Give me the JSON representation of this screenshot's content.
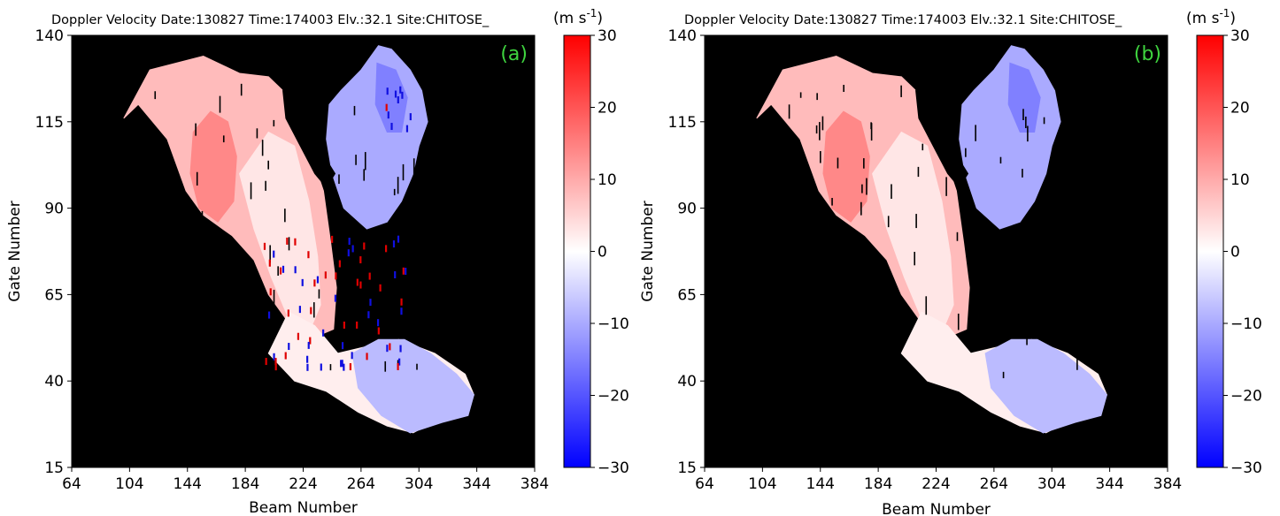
{
  "chart_data": [
    {
      "type": "heatmap",
      "title": "Doppler Velocity  Date:130827 Time:174003 Elv.:32.1 Site:CHITOSE_",
      "panel_label": "(a)",
      "xlabel": "Beam Number",
      "ylabel": "Gate Number",
      "xlim": [
        64,
        384
      ],
      "ylim": [
        15,
        140
      ],
      "xticks": [
        64,
        104,
        144,
        184,
        224,
        264,
        304,
        344,
        384
      ],
      "yticks": [
        15,
        40,
        65,
        90,
        115,
        140
      ],
      "background": "#000000",
      "colorbar": {
        "label_main": "(m s",
        "label_sup": "-1",
        "label_end": ")",
        "range": [
          -30,
          30
        ],
        "ticks": [
          30,
          20,
          10,
          0,
          -10,
          -20,
          -30
        ],
        "tick_labels": [
          "30",
          "20",
          "10",
          "0",
          "−10",
          "−20",
          "−30"
        ],
        "colors": [
          "#0000ff",
          "#ffffff",
          "#ff0000"
        ]
      },
      "regions": [
        {
          "name": "west-lobe",
          "approx_velocity": 8,
          "polygon": [
            [
              100,
              116
            ],
            [
              118,
              130
            ],
            [
              155,
              134
            ],
            [
              180,
              129
            ],
            [
              200,
              128
            ],
            [
              210,
              124
            ],
            [
              222,
              115
            ],
            [
              230,
              105
            ],
            [
              238,
              95
            ],
            [
              243,
              80
            ],
            [
              247,
              67
            ],
            [
              245,
              55
            ],
            [
              228,
              52
            ],
            [
              212,
              58
            ],
            [
              200,
              65
            ],
            [
              190,
              75
            ],
            [
              175,
              82
            ],
            [
              155,
              88
            ],
            [
              143,
              95
            ],
            [
              130,
              110
            ],
            [
              110,
              120
            ]
          ]
        },
        {
          "name": "west-core",
          "approx_velocity": 14,
          "polygon": [
            [
              148,
              112
            ],
            [
              160,
              118
            ],
            [
              172,
              115
            ],
            [
              178,
              105
            ],
            [
              176,
              92
            ],
            [
              165,
              86
            ],
            [
              152,
              90
            ],
            [
              146,
              100
            ]
          ]
        },
        {
          "name": "central-band",
          "approx_velocity": 3,
          "polygon": [
            [
              180,
              100
            ],
            [
              200,
              112
            ],
            [
              218,
              108
            ],
            [
              228,
              92
            ],
            [
              234,
              76
            ],
            [
              236,
              62
            ],
            [
              228,
              54
            ],
            [
              214,
              58
            ],
            [
              202,
              70
            ],
            [
              190,
              84
            ]
          ]
        },
        {
          "name": "south-band",
          "approx_velocity": 2,
          "polygon": [
            [
              200,
              48
            ],
            [
              218,
              40
            ],
            [
              240,
              37
            ],
            [
              262,
              31
            ],
            [
              282,
              27
            ],
            [
              300,
              25
            ],
            [
              318,
              29
            ],
            [
              335,
              30
            ],
            [
              342,
              36
            ],
            [
              336,
              42
            ],
            [
              315,
              48
            ],
            [
              290,
              52
            ],
            [
              268,
              50
            ],
            [
              248,
              48
            ],
            [
              232,
              56
            ],
            [
              214,
              60
            ]
          ]
        },
        {
          "name": "south-east-tail",
          "approx_velocity": -8,
          "polygon": [
            [
              258,
              48
            ],
            [
              276,
              52
            ],
            [
              294,
              52
            ],
            [
              312,
              48
            ],
            [
              330,
              42
            ],
            [
              342,
              36
            ],
            [
              338,
              30
            ],
            [
              320,
              28
            ],
            [
              298,
              25
            ],
            [
              278,
              30
            ],
            [
              262,
              38
            ]
          ]
        },
        {
          "name": "north-east-lobe",
          "approx_velocity": -10,
          "polygon": [
            [
              242,
              120
            ],
            [
              250,
              124
            ],
            [
              264,
              130
            ],
            [
              276,
              137
            ],
            [
              285,
              136
            ],
            [
              298,
              130
            ],
            [
              306,
              124
            ],
            [
              310,
              115
            ],
            [
              304,
              108
            ],
            [
              300,
              100
            ],
            [
              292,
              92
            ],
            [
              282,
              86
            ],
            [
              268,
              84
            ],
            [
              252,
              90
            ],
            [
              244,
              100
            ],
            [
              240,
              110
            ]
          ]
        },
        {
          "name": "north-east-core",
          "approx_velocity": -15,
          "polygon": [
            [
              275,
              132
            ],
            [
              288,
              130
            ],
            [
              296,
              122
            ],
            [
              292,
              112
            ],
            [
              282,
              112
            ],
            [
              274,
              120
            ]
          ]
        },
        {
          "name": "gap-notch",
          "approx_velocity": null,
          "polygon": [
            [
              210,
              124
            ],
            [
              226,
              118
            ],
            [
              236,
              112
            ],
            [
              240,
              104
            ],
            [
              246,
              100
            ],
            [
              240,
              96
            ],
            [
              232,
              100
            ],
            [
              222,
              108
            ],
            [
              212,
              116
            ]
          ]
        }
      ],
      "speckles": true
    },
    {
      "type": "heatmap",
      "title": "Doppler Velocity  Date:130827 Time:174003 Elv.:32.1 Site:CHITOSE_",
      "panel_label": "(b)",
      "xlabel": "Beam Number",
      "ylabel": "Gate Number",
      "xlim": [
        64,
        384
      ],
      "ylim": [
        15,
        140
      ],
      "xticks": [
        64,
        104,
        144,
        184,
        224,
        264,
        304,
        344,
        384
      ],
      "yticks": [
        15,
        40,
        65,
        90,
        115,
        140
      ],
      "background": "#000000",
      "colorbar": {
        "label_main": "(m s",
        "label_sup": "-1",
        "label_end": ")",
        "range": [
          -30,
          30
        ],
        "ticks": [
          30,
          20,
          10,
          0,
          -10,
          -20,
          -30
        ],
        "tick_labels": [
          "30",
          "20",
          "10",
          "0",
          "−10",
          "−20",
          "−30"
        ],
        "colors": [
          "#0000ff",
          "#ffffff",
          "#ff0000"
        ]
      },
      "regions": [
        {
          "name": "west-lobe",
          "approx_velocity": 8,
          "polygon": [
            [
              100,
              116
            ],
            [
              118,
              130
            ],
            [
              155,
              134
            ],
            [
              180,
              129
            ],
            [
              200,
              128
            ],
            [
              210,
              124
            ],
            [
              222,
              115
            ],
            [
              230,
              105
            ],
            [
              238,
              95
            ],
            [
              243,
              80
            ],
            [
              247,
              67
            ],
            [
              245,
              55
            ],
            [
              228,
              52
            ],
            [
              212,
              58
            ],
            [
              200,
              65
            ],
            [
              190,
              75
            ],
            [
              175,
              82
            ],
            [
              155,
              88
            ],
            [
              143,
              95
            ],
            [
              130,
              110
            ],
            [
              110,
              120
            ]
          ]
        },
        {
          "name": "west-core",
          "approx_velocity": 14,
          "polygon": [
            [
              148,
              112
            ],
            [
              160,
              118
            ],
            [
              172,
              115
            ],
            [
              178,
              105
            ],
            [
              176,
              92
            ],
            [
              165,
              86
            ],
            [
              152,
              90
            ],
            [
              146,
              100
            ]
          ]
        },
        {
          "name": "central-band",
          "approx_velocity": 3,
          "polygon": [
            [
              180,
              100
            ],
            [
              200,
              112
            ],
            [
              218,
              108
            ],
            [
              228,
              92
            ],
            [
              234,
              76
            ],
            [
              236,
              62
            ],
            [
              228,
              54
            ],
            [
              214,
              58
            ],
            [
              202,
              70
            ],
            [
              190,
              84
            ]
          ]
        },
        {
          "name": "south-band",
          "approx_velocity": 2,
          "polygon": [
            [
              200,
              48
            ],
            [
              218,
              40
            ],
            [
              240,
              37
            ],
            [
              262,
              31
            ],
            [
              282,
              27
            ],
            [
              300,
              25
            ],
            [
              318,
              29
            ],
            [
              335,
              30
            ],
            [
              342,
              36
            ],
            [
              336,
              42
            ],
            [
              315,
              48
            ],
            [
              290,
              52
            ],
            [
              268,
              50
            ],
            [
              248,
              48
            ],
            [
              232,
              56
            ],
            [
              214,
              60
            ]
          ]
        },
        {
          "name": "south-east-tail",
          "approx_velocity": -8,
          "polygon": [
            [
              258,
              48
            ],
            [
              276,
              52
            ],
            [
              294,
              52
            ],
            [
              312,
              48
            ],
            [
              330,
              42
            ],
            [
              342,
              36
            ],
            [
              338,
              30
            ],
            [
              320,
              28
            ],
            [
              298,
              25
            ],
            [
              278,
              30
            ],
            [
              262,
              38
            ]
          ]
        },
        {
          "name": "north-east-lobe",
          "approx_velocity": -10,
          "polygon": [
            [
              242,
              120
            ],
            [
              250,
              124
            ],
            [
              264,
              130
            ],
            [
              276,
              137
            ],
            [
              285,
              136
            ],
            [
              298,
              130
            ],
            [
              306,
              124
            ],
            [
              310,
              115
            ],
            [
              304,
              108
            ],
            [
              300,
              100
            ],
            [
              292,
              92
            ],
            [
              282,
              86
            ],
            [
              268,
              84
            ],
            [
              252,
              90
            ],
            [
              244,
              100
            ],
            [
              240,
              110
            ]
          ]
        },
        {
          "name": "north-east-core",
          "approx_velocity": -15,
          "polygon": [
            [
              275,
              132
            ],
            [
              288,
              130
            ],
            [
              296,
              122
            ],
            [
              292,
              112
            ],
            [
              282,
              112
            ],
            [
              274,
              120
            ]
          ]
        },
        {
          "name": "gap-notch",
          "approx_velocity": null,
          "polygon": [
            [
              210,
              124
            ],
            [
              226,
              118
            ],
            [
              236,
              112
            ],
            [
              240,
              104
            ],
            [
              246,
              100
            ],
            [
              240,
              96
            ],
            [
              232,
              100
            ],
            [
              222,
              108
            ],
            [
              212,
              116
            ]
          ]
        }
      ],
      "speckles": false
    }
  ]
}
